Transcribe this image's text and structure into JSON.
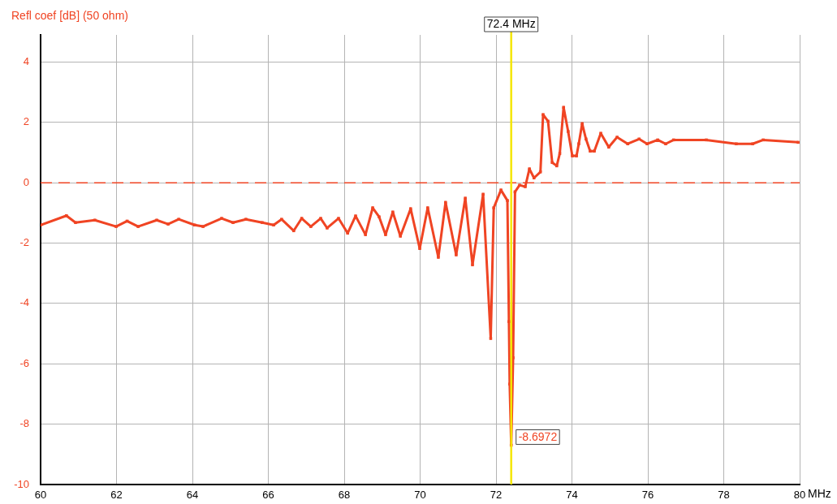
{
  "chart_data": {
    "type": "line",
    "ylabel": "Refl coef [dB] (50 ohm)",
    "xlabel": "MHz",
    "xlim": [
      60,
      80
    ],
    "xticks": [
      60,
      62,
      64,
      66,
      68,
      70,
      72,
      74,
      76,
      78,
      80
    ],
    "ylim": [
      -10,
      4.9
    ],
    "yticks": [
      -10,
      -8,
      -6,
      -4,
      -2,
      0,
      2,
      4
    ],
    "grid": true,
    "marker": "square",
    "line_style": "solid",
    "series": [
      {
        "color": "#f04423",
        "x": [
          60,
          60.68,
          60.92,
          61.43,
          61.99,
          62.28,
          62.57,
          63.06,
          63.36,
          63.64,
          64.06,
          64.28,
          64.77,
          65.07,
          65.41,
          65.84,
          66.14,
          66.35,
          66.67,
          66.88,
          67.12,
          67.38,
          67.55,
          67.85,
          68.09,
          68.3,
          68.56,
          68.75,
          68.92,
          69.09,
          69.28,
          69.48,
          69.75,
          69.99,
          70.2,
          70.48,
          70.67,
          70.95,
          71.19,
          71.38,
          71.66,
          71.86,
          71.94,
          72.13,
          72.3,
          72.34,
          72.36,
          72.4,
          72.45,
          72.5,
          72.62,
          72.77,
          72.88,
          73,
          73.17,
          73.24,
          73.37,
          73.48,
          73.6,
          73.68,
          73.78,
          73.9,
          74.01,
          74.12,
          74.18,
          74.27,
          74.37,
          74.48,
          74.59,
          74.76,
          74.97,
          75.19,
          75.47,
          75.77,
          75.98,
          76.26,
          76.47,
          76.68,
          77.54,
          78.33,
          78.76,
          79.04,
          79.96
        ],
        "values": [
          -1.4,
          -1.09,
          -1.32,
          -1.24,
          -1.45,
          -1.27,
          -1.45,
          -1.24,
          -1.37,
          -1.21,
          -1.4,
          -1.45,
          -1.18,
          -1.32,
          -1.21,
          -1.32,
          -1.4,
          -1.21,
          -1.59,
          -1.18,
          -1.45,
          -1.18,
          -1.5,
          -1.18,
          -1.67,
          -1.1,
          -1.72,
          -0.83,
          -1.13,
          -1.72,
          -0.97,
          -1.77,
          -0.86,
          -2.18,
          -0.83,
          -2.47,
          -0.65,
          -2.39,
          -0.51,
          -2.72,
          -0.38,
          -5.16,
          -0.83,
          -0.24,
          -0.59,
          -4.6,
          -6.67,
          -8.6972,
          -5.8,
          -0.3,
          -0.08,
          -0.13,
          0.46,
          0.16,
          0.36,
          2.26,
          2.04,
          0.67,
          0.56,
          0.97,
          2.5,
          1.7,
          0.89,
          0.89,
          1.29,
          1.96,
          1.45,
          1.05,
          1.05,
          1.64,
          1.18,
          1.51,
          1.29,
          1.45,
          1.29,
          1.42,
          1.29,
          1.42,
          1.42,
          1.29,
          1.29,
          1.42,
          1.34
        ]
      }
    ],
    "ref_lines": [
      {
        "axis": "x",
        "value": 72.4,
        "label": "72.4 MHz",
        "color": "#f5e600",
        "line_style": "solid"
      },
      {
        "axis": "y",
        "value": 0,
        "color": "#f04423",
        "line_style": "dashed"
      }
    ],
    "annotations": [
      {
        "text": "-8.6972",
        "x": 72.4,
        "y": -8.6972
      }
    ]
  }
}
